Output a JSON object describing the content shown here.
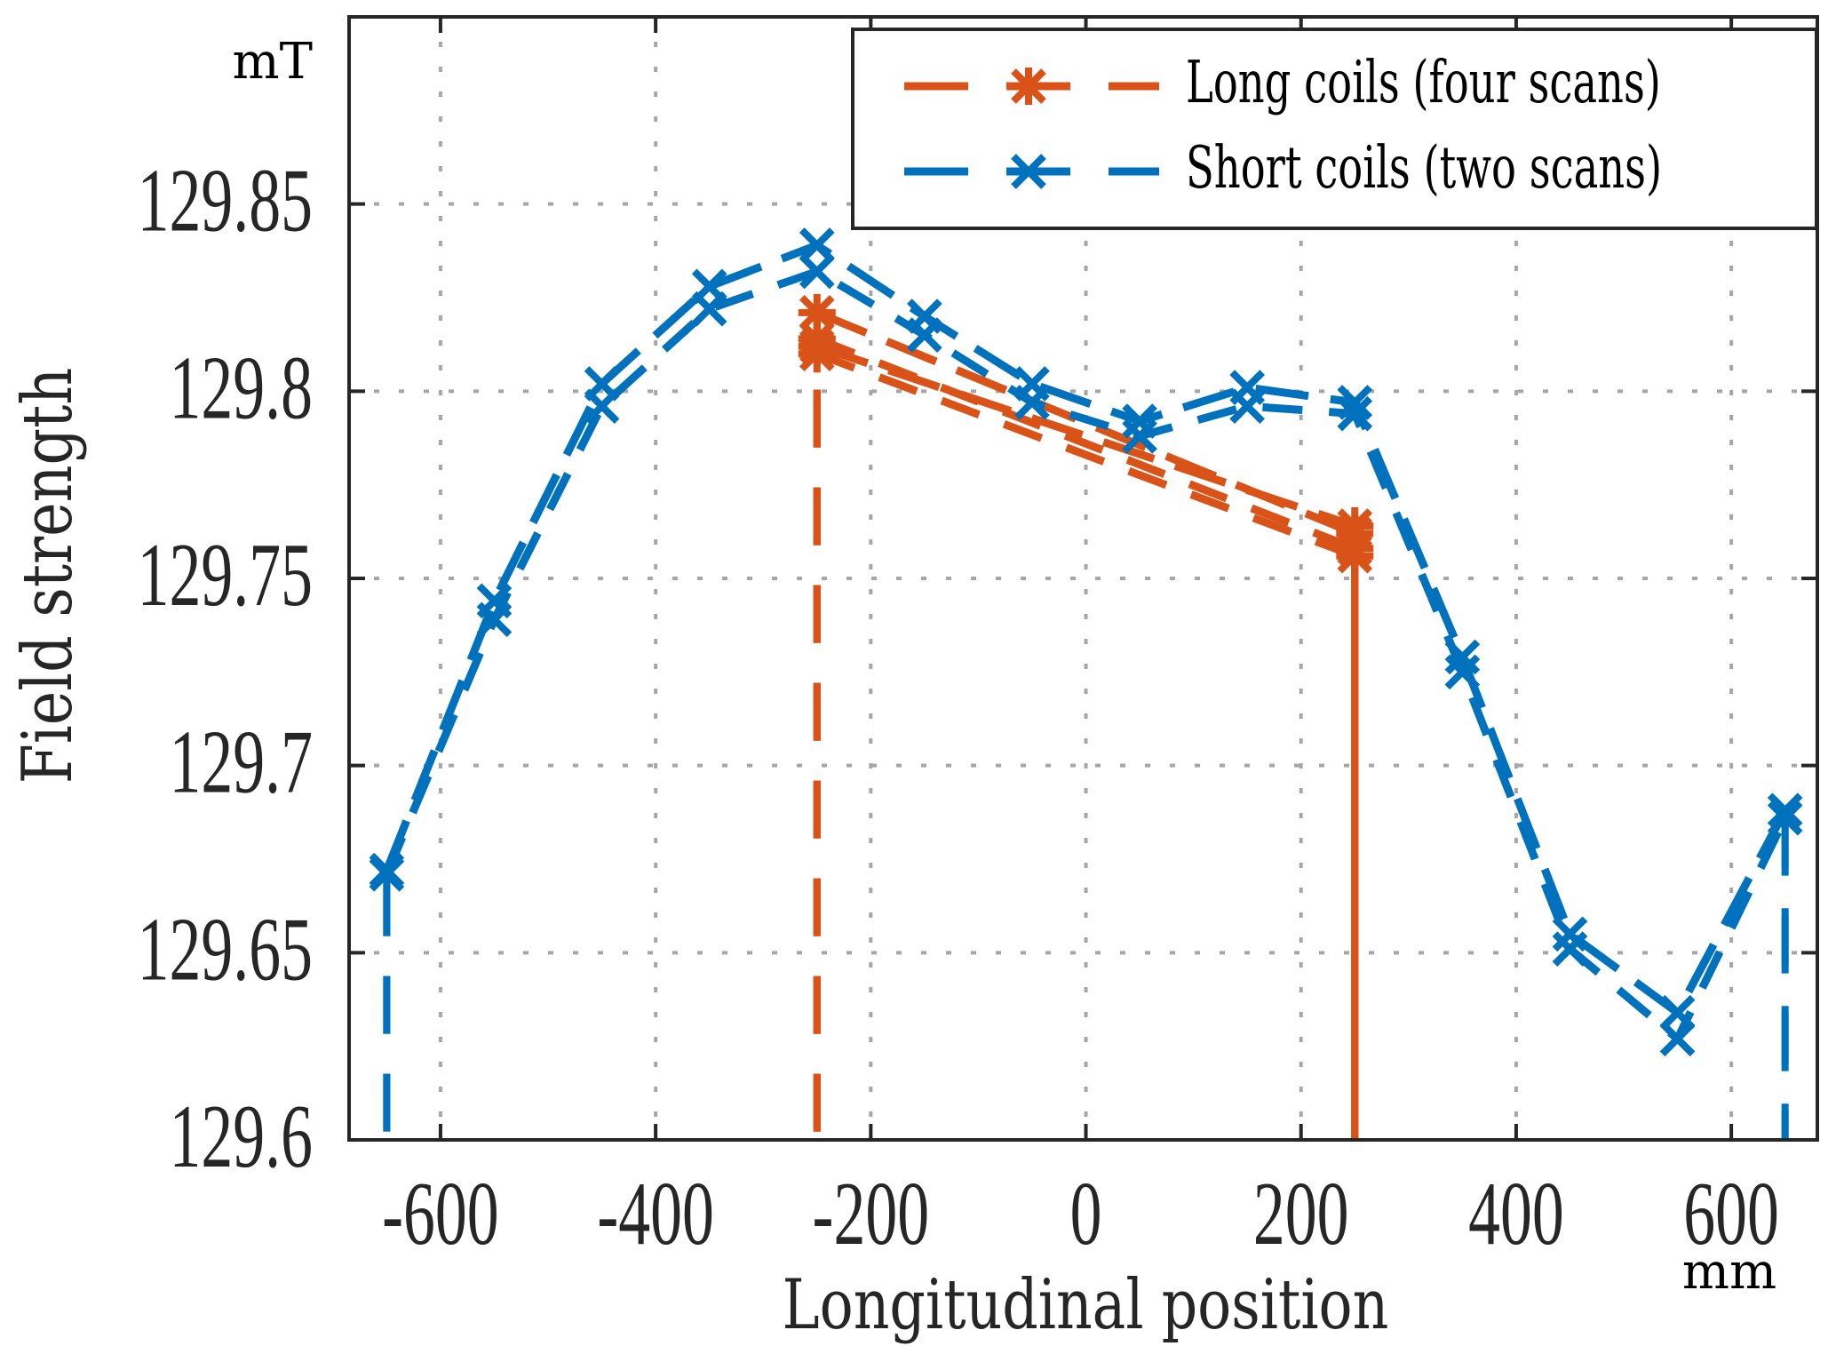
{
  "chart_data": {
    "type": "line",
    "title": "",
    "xlabel": "Longitudinal position",
    "ylabel": "Field strength",
    "x_unit": "mm",
    "y_unit": "mT",
    "xlim": [
      -685,
      680
    ],
    "ylim": [
      129.6,
      129.9
    ],
    "grid": true,
    "legend_position": "top-right",
    "x_ticks": [
      -600,
      -400,
      -200,
      0,
      200,
      400,
      600
    ],
    "x_tick_labels": [
      "-600",
      "-400",
      "-200",
      "0",
      "200",
      "400",
      "600"
    ],
    "y_ticks": [
      129.6,
      129.65,
      129.7,
      129.75,
      129.8,
      129.85
    ],
    "y_tick_labels": [
      "129.6",
      "129.65",
      "129.7",
      "129.75",
      "129.8",
      "129.85"
    ],
    "series": [
      {
        "name": "Long coils (four scans)",
        "color": "#D95319",
        "marker": "asterisk",
        "scans": [
          {
            "x": [
              -250,
              -250,
              250,
              250
            ],
            "y": [
              129.55,
              129.821,
              129.762,
              129.55
            ],
            "drop_style": "dashed"
          },
          {
            "x": [
              -250,
              -250,
              250,
              250
            ],
            "y": [
              129.55,
              129.814,
              129.758,
              129.55
            ],
            "drop_style": "dashed"
          },
          {
            "x": [
              -250,
              -250,
              250,
              250
            ],
            "y": [
              129.55,
              129.812,
              129.764,
              129.55
            ],
            "drop_style": "solid"
          },
          {
            "x": [
              -250,
              -250,
              250,
              250
            ],
            "y": [
              129.55,
              129.81,
              129.756,
              129.55
            ],
            "drop_style": "solid"
          }
        ]
      },
      {
        "name": "Short coils (two scans)",
        "color": "#0072BD",
        "marker": "x",
        "scans": [
          {
            "x": [
              -650,
              -650,
              -550,
              -450,
              -350,
              -250,
              -150,
              -50,
              50,
              150,
              250,
              350,
              450,
              550,
              650,
              650
            ],
            "y": [
              129.55,
              129.672,
              129.744,
              129.802,
              129.828,
              129.839,
              129.82,
              129.802,
              129.792,
              129.801,
              129.797,
              129.729,
              129.655,
              129.634,
              129.688,
              129.55
            ]
          },
          {
            "x": [
              -650,
              -650,
              -550,
              -450,
              -350,
              -250,
              -150,
              -50,
              50,
              150,
              250,
              350,
              450,
              550,
              650,
              650
            ],
            "y": [
              129.55,
              129.671,
              129.739,
              129.796,
              129.822,
              129.832,
              129.815,
              129.797,
              129.788,
              129.796,
              129.794,
              129.725,
              129.651,
              129.627,
              129.686,
              129.55
            ]
          }
        ]
      }
    ]
  }
}
